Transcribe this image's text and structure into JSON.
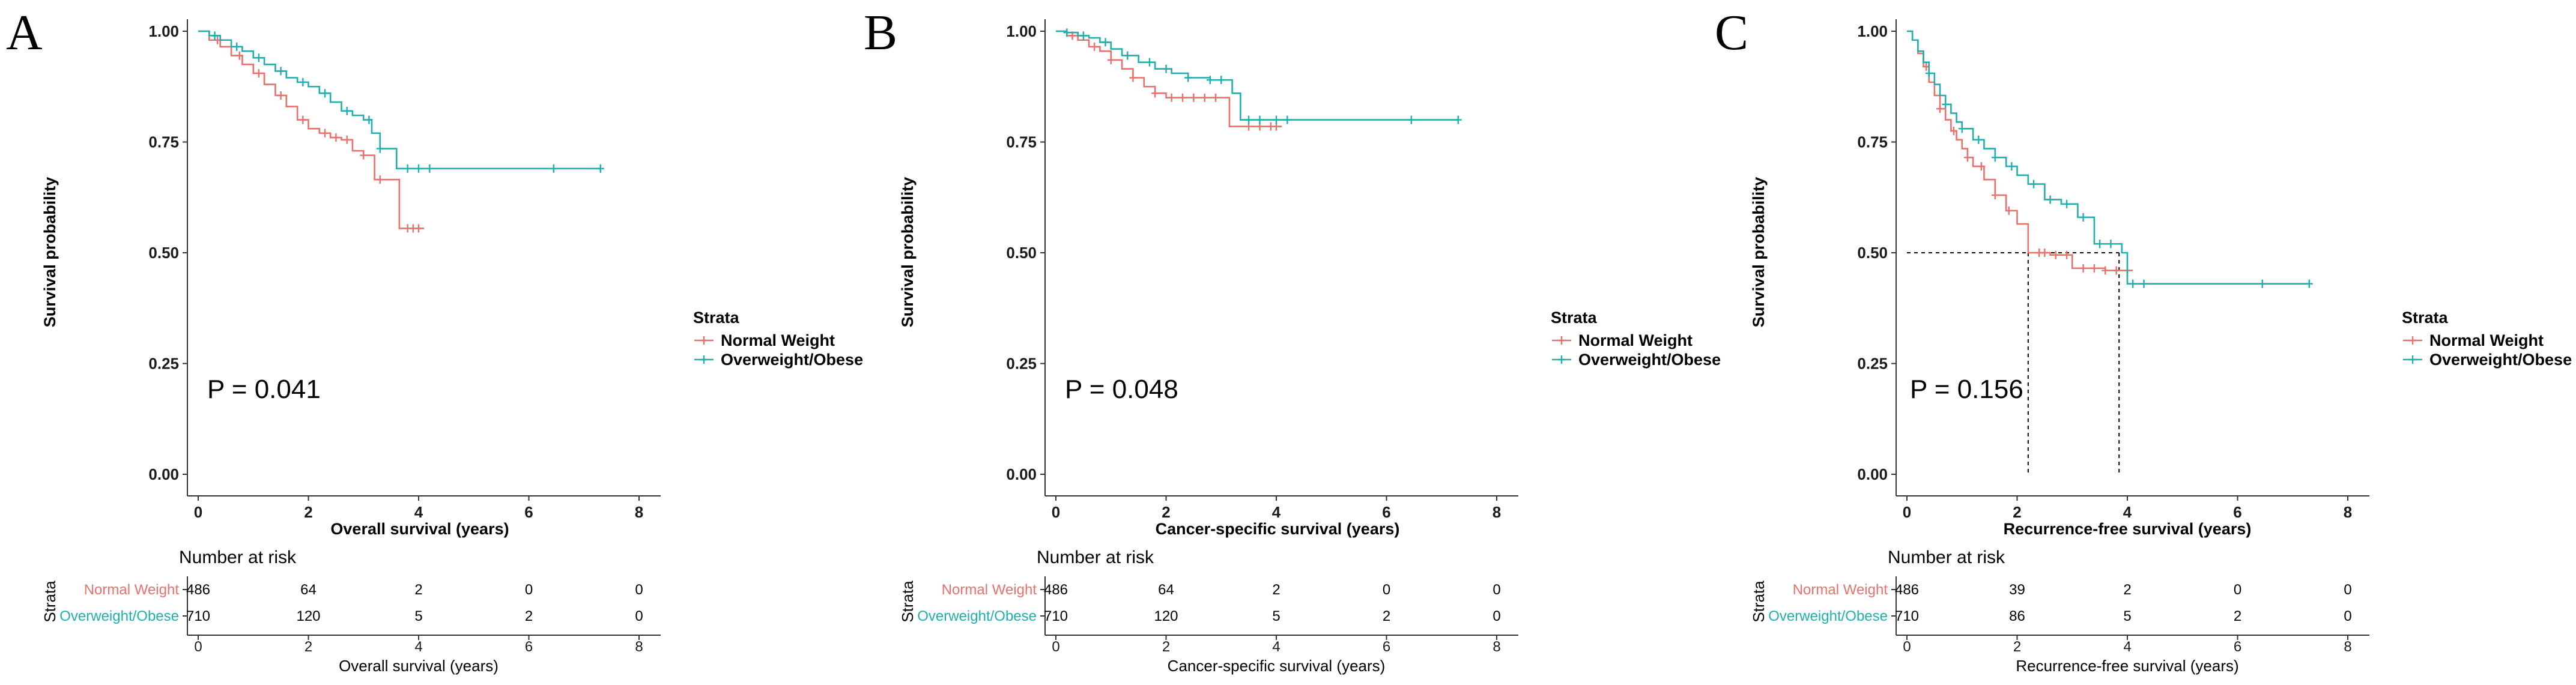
{
  "colors": {
    "normal": "#E8726A",
    "over": "#1FAFAE",
    "axis": "#333333"
  },
  "chart_data": [
    {
      "type": "line",
      "panel": "A",
      "xlabel": "Overall survival (years)",
      "ylabel": "Survival probability",
      "xlim": [
        0,
        8
      ],
      "ylim": [
        0,
        1
      ],
      "xticks": [
        "0",
        "2",
        "4",
        "6",
        "8"
      ],
      "yticks": [
        "0.00",
        "0.25",
        "0.50",
        "0.75",
        "1.00"
      ],
      "pvalue": "P = 0.041",
      "legend": {
        "title": "Strata",
        "placement": "right"
      },
      "series": [
        {
          "name": "Normal Weight",
          "color_key": "normal",
          "x": [
            0,
            0.2,
            0.4,
            0.6,
            0.8,
            1.0,
            1.2,
            1.4,
            1.6,
            1.8,
            2.0,
            2.2,
            2.4,
            2.6,
            2.8,
            3.0,
            3.2,
            3.4,
            3.6,
            3.65,
            4.1
          ],
          "y": [
            1.0,
            0.98,
            0.965,
            0.945,
            0.925,
            0.905,
            0.88,
            0.855,
            0.83,
            0.8,
            0.78,
            0.77,
            0.76,
            0.755,
            0.73,
            0.72,
            0.665,
            0.665,
            0.665,
            0.555,
            0.555
          ],
          "censor_x": [
            0.35,
            0.75,
            1.1,
            1.5,
            1.9,
            2.3,
            2.5,
            2.7,
            3.0,
            3.3,
            3.8,
            3.9,
            4.0
          ]
        },
        {
          "name": "Overweight/Obese",
          "color_key": "over",
          "x": [
            0,
            0.2,
            0.4,
            0.6,
            0.8,
            1.0,
            1.2,
            1.4,
            1.6,
            1.8,
            2.0,
            2.2,
            2.4,
            2.6,
            2.8,
            3.0,
            3.15,
            3.3,
            3.5,
            3.6,
            7.3
          ],
          "y": [
            1.0,
            0.99,
            0.98,
            0.965,
            0.955,
            0.94,
            0.925,
            0.91,
            0.895,
            0.885,
            0.875,
            0.86,
            0.84,
            0.82,
            0.81,
            0.8,
            0.77,
            0.735,
            0.735,
            0.69,
            0.69
          ],
          "censor_x": [
            0.3,
            0.7,
            1.1,
            1.5,
            1.9,
            2.3,
            2.7,
            3.1,
            3.3,
            3.8,
            4.0,
            4.2,
            6.45,
            7.3
          ]
        }
      ],
      "risk_table": {
        "title": "Number at risk",
        "strata_label": "Strata",
        "xlabel": "Overall survival (years)",
        "rows": [
          {
            "label": "Normal Weight",
            "color_key": "normal",
            "values": [
              "486",
              "64",
              "2",
              "0",
              "0"
            ]
          },
          {
            "label": "Overweight/Obese",
            "color_key": "over",
            "values": [
              "710",
              "120",
              "5",
              "2",
              "0"
            ]
          }
        ]
      }
    },
    {
      "type": "line",
      "panel": "B",
      "xlabel": "Cancer-specific survival (years)",
      "ylabel": "Survival probability",
      "xlim": [
        0,
        8
      ],
      "ylim": [
        0,
        1
      ],
      "xticks": [
        "0",
        "2",
        "4",
        "6",
        "8"
      ],
      "yticks": [
        "0.00",
        "0.25",
        "0.50",
        "0.75",
        "1.00"
      ],
      "pvalue": "P = 0.048",
      "legend": {
        "title": "Strata",
        "placement": "right"
      },
      "series": [
        {
          "name": "Normal Weight",
          "color_key": "normal",
          "x": [
            0,
            0.2,
            0.4,
            0.6,
            0.8,
            1.0,
            1.2,
            1.4,
            1.6,
            1.8,
            2.0,
            2.4,
            2.8,
            3.1,
            3.15,
            4.1
          ],
          "y": [
            1.0,
            0.99,
            0.98,
            0.965,
            0.955,
            0.935,
            0.915,
            0.895,
            0.875,
            0.86,
            0.85,
            0.85,
            0.85,
            0.85,
            0.785,
            0.785
          ],
          "censor_x": [
            0.3,
            0.7,
            1.0,
            1.4,
            1.8,
            2.1,
            2.3,
            2.5,
            2.7,
            2.9,
            3.5,
            3.7,
            3.9,
            4.0
          ]
        },
        {
          "name": "Overweight/Obese",
          "color_key": "over",
          "x": [
            0,
            0.2,
            0.4,
            0.6,
            0.8,
            1.0,
            1.2,
            1.5,
            1.8,
            2.1,
            2.4,
            2.8,
            3.2,
            3.35,
            7.3
          ],
          "y": [
            1.0,
            0.997,
            0.99,
            0.985,
            0.975,
            0.96,
            0.945,
            0.93,
            0.915,
            0.905,
            0.895,
            0.89,
            0.86,
            0.8,
            0.8
          ],
          "censor_x": [
            0.2,
            0.5,
            0.9,
            1.3,
            1.7,
            2.0,
            2.4,
            2.8,
            3.0,
            3.5,
            3.7,
            4.0,
            4.2,
            6.45,
            7.3
          ]
        }
      ],
      "risk_table": {
        "title": "Number at risk",
        "strata_label": "Strata",
        "xlabel": "Cancer-specific survival (years)",
        "rows": [
          {
            "label": "Normal Weight",
            "color_key": "normal",
            "values": [
              "486",
              "64",
              "2",
              "0",
              "0"
            ]
          },
          {
            "label": "Overweight/Obese",
            "color_key": "over",
            "values": [
              "710",
              "120",
              "5",
              "2",
              "0"
            ]
          }
        ]
      }
    },
    {
      "type": "line",
      "panel": "C",
      "xlabel": "Recurrence-free survival (years)",
      "ylabel": "Survival probability",
      "xlim": [
        0,
        8
      ],
      "ylim": [
        0,
        1
      ],
      "xticks": [
        "0",
        "2",
        "4",
        "6",
        "8"
      ],
      "yticks": [
        "0.00",
        "0.25",
        "0.50",
        "0.75",
        "1.00"
      ],
      "pvalue": "P = 0.156",
      "legend": {
        "title": "Strata",
        "placement": "right"
      },
      "median_lines": [
        2.2,
        3.85
      ],
      "series": [
        {
          "name": "Normal Weight",
          "color_key": "normal",
          "x": [
            0,
            0.1,
            0.2,
            0.3,
            0.4,
            0.5,
            0.6,
            0.7,
            0.8,
            0.9,
            1.0,
            1.1,
            1.2,
            1.4,
            1.6,
            1.8,
            2.0,
            2.2,
            2.6,
            3.0,
            3.6,
            4.1
          ],
          "y": [
            1.0,
            0.98,
            0.95,
            0.92,
            0.885,
            0.855,
            0.825,
            0.8,
            0.775,
            0.755,
            0.735,
            0.715,
            0.695,
            0.665,
            0.63,
            0.595,
            0.565,
            0.5,
            0.495,
            0.465,
            0.46,
            0.46
          ],
          "censor_x": [
            0.35,
            0.6,
            0.85,
            1.1,
            1.35,
            1.6,
            1.85,
            2.4,
            2.5,
            2.7,
            2.9,
            3.2,
            3.4,
            3.6,
            3.8,
            4.0
          ]
        },
        {
          "name": "Overweight/Obese",
          "color_key": "over",
          "x": [
            0,
            0.1,
            0.2,
            0.3,
            0.4,
            0.5,
            0.6,
            0.7,
            0.8,
            0.9,
            1.0,
            1.2,
            1.4,
            1.6,
            1.8,
            2.0,
            2.2,
            2.5,
            2.8,
            3.1,
            3.4,
            3.9,
            4.0,
            7.3
          ],
          "y": [
            1.0,
            0.98,
            0.955,
            0.93,
            0.905,
            0.88,
            0.855,
            0.835,
            0.815,
            0.795,
            0.78,
            0.755,
            0.735,
            0.715,
            0.695,
            0.675,
            0.655,
            0.62,
            0.61,
            0.58,
            0.52,
            0.5,
            0.43,
            0.43
          ],
          "censor_x": [
            0.4,
            0.7,
            1.0,
            1.3,
            1.6,
            1.9,
            2.3,
            2.6,
            2.9,
            3.2,
            3.5,
            3.7,
            4.1,
            4.3,
            6.45,
            7.3
          ]
        }
      ],
      "risk_table": {
        "title": "Number at risk",
        "strata_label": "Strata",
        "xlabel": "Recurrence-free survival (years)",
        "rows": [
          {
            "label": "Normal Weight",
            "color_key": "normal",
            "values": [
              "486",
              "39",
              "2",
              "0",
              "0"
            ]
          },
          {
            "label": "Overweight/Obese",
            "color_key": "over",
            "values": [
              "710",
              "86",
              "5",
              "2",
              "0"
            ]
          }
        ]
      }
    }
  ]
}
